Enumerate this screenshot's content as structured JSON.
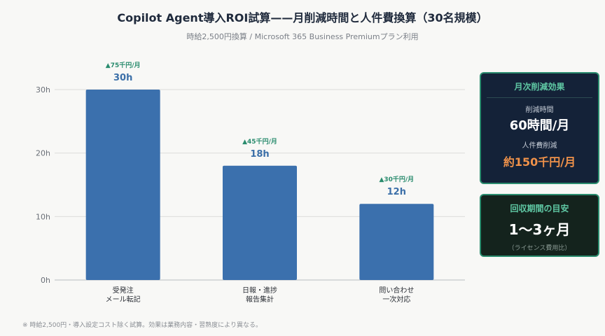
{
  "chart_data": {
    "type": "bar",
    "title": "Copilot Agent導入ROI試算——月削減時間と人件費換算（30名規模）",
    "subtitle": "時給2,500円換算 / Microsoft 365 Business Premiumプラン利用",
    "categories": [
      [
        "受発注",
        "メール転記"
      ],
      [
        "日報・進捗",
        "報告集計"
      ],
      [
        "問い合わせ",
        "一次対応"
      ]
    ],
    "values": [
      30,
      18,
      12
    ],
    "value_labels": [
      "30h",
      "18h",
      "12h"
    ],
    "cost_labels": [
      "▲75千円/月",
      "▲45千円/月",
      "▲30千円/月"
    ],
    "yticks": [
      0,
      10,
      20,
      30
    ],
    "ytick_labels": [
      "0h",
      "10h",
      "20h",
      "30h"
    ],
    "ylim": [
      0,
      30
    ],
    "grid": true,
    "colors": {
      "bar": "#3b70ad",
      "value": "#3b6fa8",
      "cost": "#2a8c6e"
    }
  },
  "cards": {
    "effect": {
      "title": "月次削減効果",
      "time_label": "削減時間",
      "time_value": "60時間/月",
      "cost_label": "人件費削減",
      "cost_value": "約150千円/月"
    },
    "payback": {
      "title": "回収期間の目安",
      "value": "1〜3ヶ月",
      "note": "（ライセンス費用比）"
    }
  },
  "footnote": "※ 時給2,500円・導入設定コスト除く試算。効果は業務内容・習熟度により異なる。"
}
